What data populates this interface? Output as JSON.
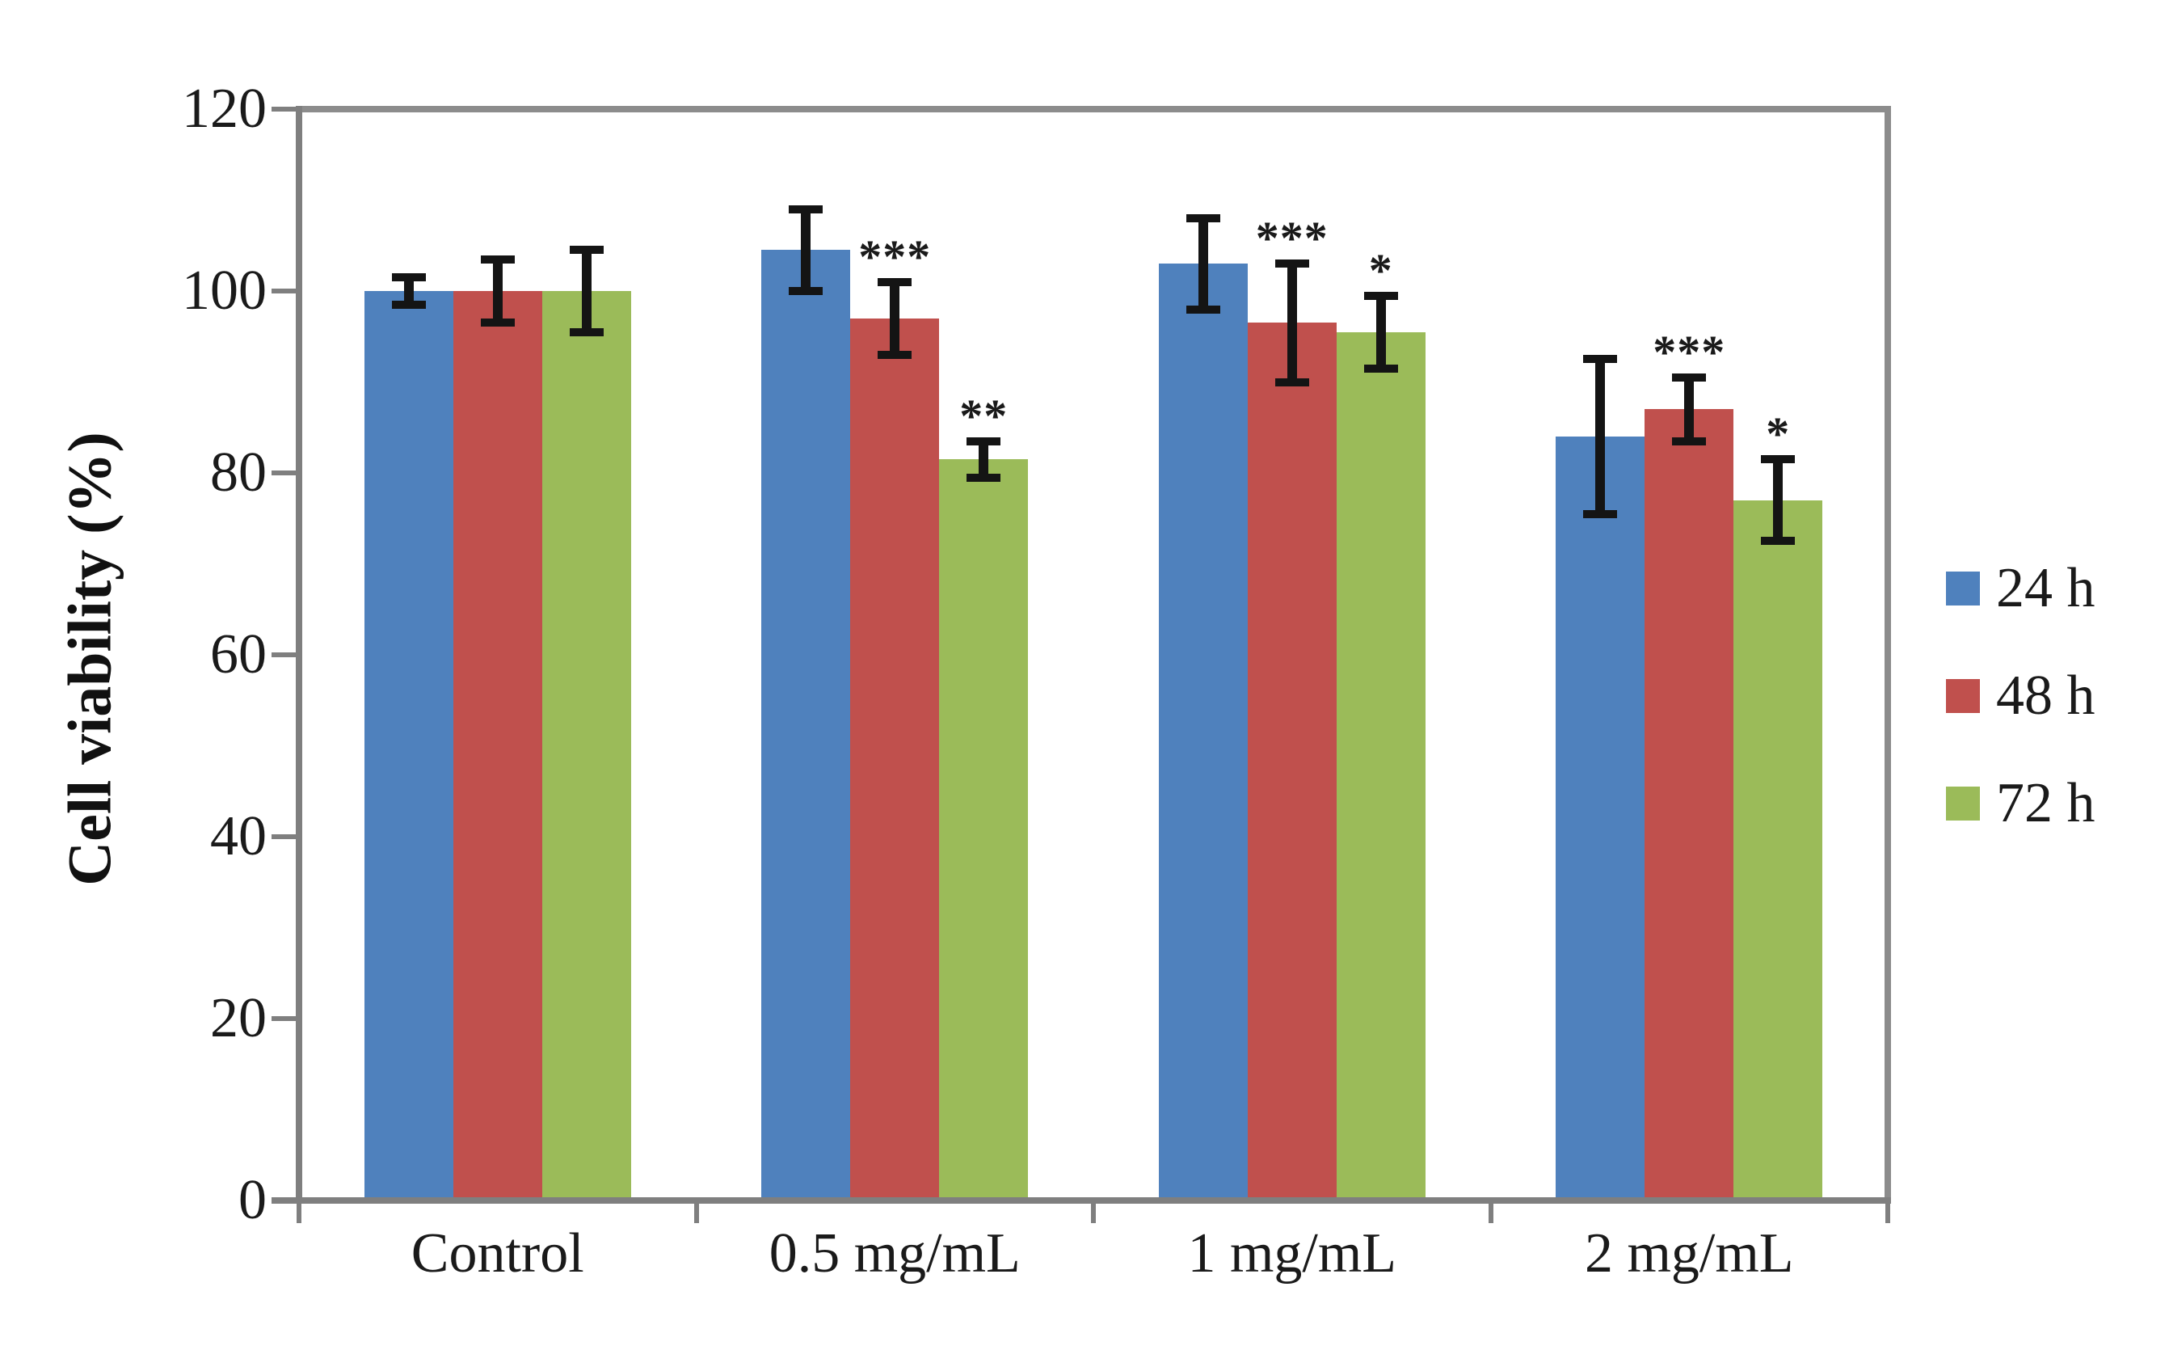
{
  "chart_data": {
    "type": "bar",
    "title": "",
    "categories": [
      "Control",
      "0.5 mg/mL",
      "1 mg/mL",
      "2 mg/mL"
    ],
    "series": [
      {
        "name": "24 h",
        "color": "#4F81BD",
        "values": [
          100,
          104.5,
          103,
          84
        ],
        "errors": [
          1.5,
          4.5,
          5,
          8.5
        ],
        "annotations": [
          "",
          "",
          "",
          ""
        ]
      },
      {
        "name": "48 h",
        "color": "#C0504D",
        "values": [
          100,
          97,
          96.5,
          87
        ],
        "errors": [
          3.5,
          4,
          6.5,
          3.5
        ],
        "annotations": [
          "",
          "***",
          "***",
          "***"
        ]
      },
      {
        "name": "72 h",
        "color": "#9BBB59",
        "values": [
          100,
          81.5,
          95.5,
          77
        ],
        "errors": [
          4.5,
          2,
          4,
          4.5
        ],
        "annotations": [
          "",
          "**",
          "*",
          "*"
        ]
      }
    ],
    "xlabel": "",
    "ylabel": "Cell viability (%)",
    "ylim": [
      0,
      120
    ],
    "ytick_step": 20,
    "yticks": [
      0,
      20,
      40,
      60,
      80,
      100,
      120
    ],
    "grid": false,
    "error_bars": true,
    "legend_position": "right",
    "colors": {
      "axis": "#7f7f7f",
      "plot_border": "#8c8c8c",
      "error_bar": "#141414",
      "text": "#1a1a1a",
      "background": "#ffffff"
    }
  }
}
